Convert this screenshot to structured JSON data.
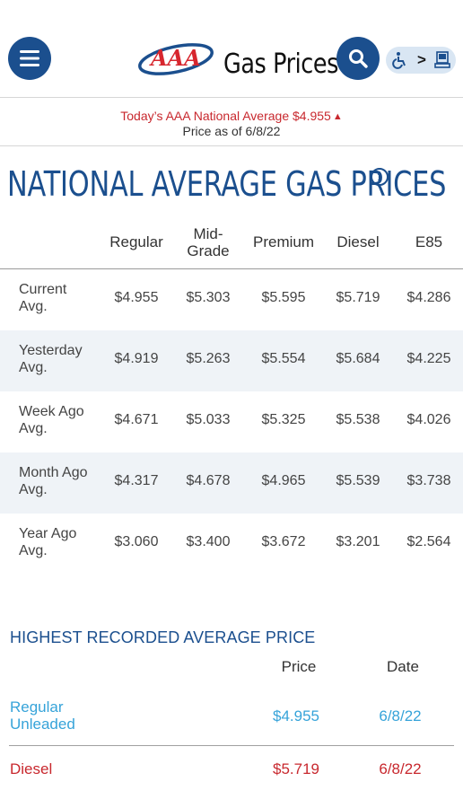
{
  "header": {
    "title": "Gas Prices",
    "brand": "AAA",
    "accessibility_icons": [
      "wheelchair-icon",
      "chevron-right-icon",
      "kiosk-icon"
    ]
  },
  "banner": {
    "national_label": "Today’s AAA National Average $4.955",
    "trend": "up",
    "price_as_of": "Price as of 6/8/22"
  },
  "page_title": "NATIONAL AVERAGE GAS PRICES",
  "prices_table": {
    "columns": [
      "Regular",
      "Mid-Grade",
      "Premium",
      "Diesel",
      "E85"
    ],
    "rows": [
      {
        "label": "Current Avg.",
        "values": [
          "$4.955",
          "$5.303",
          "$5.595",
          "$5.719",
          "$4.286"
        ]
      },
      {
        "label": "Yesterday Avg.",
        "values": [
          "$4.919",
          "$5.263",
          "$5.554",
          "$5.684",
          "$4.225"
        ]
      },
      {
        "label": "Week Ago Avg.",
        "values": [
          "$4.671",
          "$5.033",
          "$5.325",
          "$5.538",
          "$4.026"
        ]
      },
      {
        "label": "Month Ago Avg.",
        "values": [
          "$4.317",
          "$4.678",
          "$4.965",
          "$5.539",
          "$3.738"
        ]
      },
      {
        "label": "Year Ago Avg.",
        "values": [
          "$3.060",
          "$3.400",
          "$3.672",
          "$3.201",
          "$2.564"
        ]
      }
    ]
  },
  "highest_recorded": {
    "title": "HIGHEST RECORDED AVERAGE PRICE",
    "columns": [
      "Price",
      "Date"
    ],
    "rows": [
      {
        "label": "Regular Unleaded",
        "price": "$4.955",
        "date": "6/8/22",
        "color": "#36a3d9"
      },
      {
        "label": "Diesel",
        "price": "$5.719",
        "date": "6/8/22",
        "color": "#c8282e"
      }
    ]
  },
  "colors": {
    "brand_blue": "#1b4f8e",
    "alert_red": "#c8282e",
    "link_blue": "#36a3d9",
    "row_shade": "#eff3f7"
  }
}
